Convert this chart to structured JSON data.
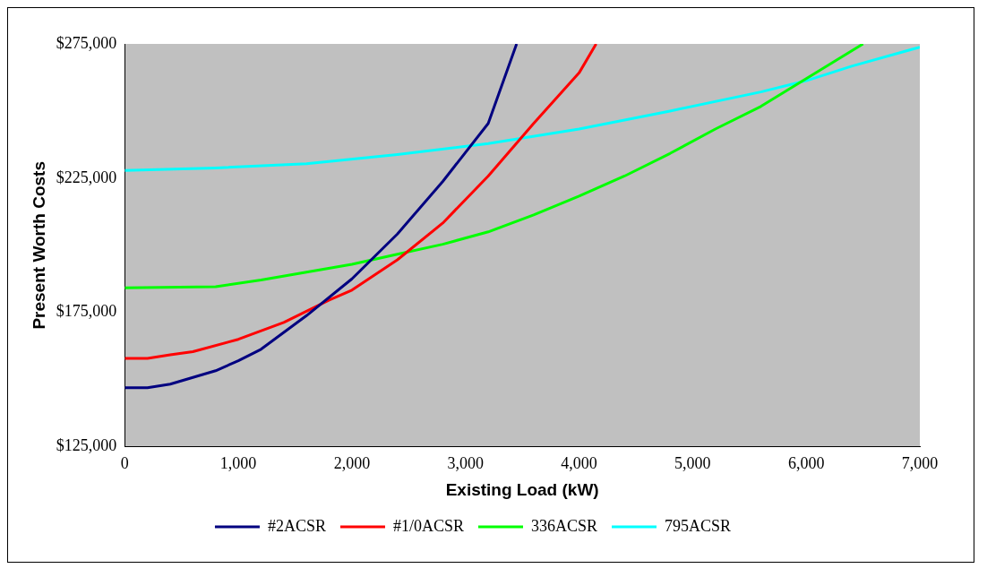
{
  "chart_data": {
    "type": "line",
    "xlabel": "Existing Load (kW)",
    "ylabel": "Present Worth Costs",
    "xlim": [
      0,
      7000
    ],
    "xticks": [
      0,
      {
        "value": 1000,
        "label": "1,000"
      },
      {
        "value": 2000,
        "label": "2,000"
      },
      {
        "value": 3000,
        "label": "3,000"
      },
      {
        "value": 4000,
        "label": "4,000"
      },
      {
        "value": 5000,
        "label": "5,000"
      },
      {
        "value": 6000,
        "label": "6,000"
      },
      {
        "value": 7000,
        "label": "7,000"
      }
    ],
    "ylim": [
      125000,
      275000
    ],
    "yticks": [
      {
        "value": 125000,
        "label": "$125,000"
      },
      {
        "value": 175000,
        "label": "$175,000"
      },
      {
        "value": 225000,
        "label": "$225,000"
      },
      {
        "value": 275000,
        "label": "$275,000"
      }
    ],
    "grid": false,
    "legend": "bottom",
    "marker": "none",
    "line_style": "solid",
    "series": [
      {
        "name": "#2ACSR",
        "color": "#000080",
        "x": [
          0,
          200,
          400,
          800,
          1000,
          1200,
          1600,
          2000,
          2400,
          2800,
          3200,
          3450
        ],
        "values": [
          147000,
          147000,
          148300,
          153300,
          157000,
          161300,
          173800,
          187500,
          204200,
          223800,
          245400,
          275000
        ]
      },
      {
        "name": "#1/0ACSR",
        "color": "#ff0000",
        "x": [
          0,
          200,
          400,
          600,
          1000,
          1400,
          1800,
          2000,
          2400,
          2800,
          3200,
          3600,
          4000,
          4150
        ],
        "values": [
          157900,
          157900,
          159200,
          160400,
          165000,
          171300,
          179600,
          183300,
          194600,
          208300,
          225800,
          245400,
          264200,
          275000
        ]
      },
      {
        "name": "336ACSR",
        "color": "#00ff00",
        "x": [
          0,
          800,
          1200,
          1600,
          2000,
          2400,
          2800,
          3200,
          3600,
          4000,
          4400,
          4800,
          5200,
          5600,
          6000,
          6500
        ],
        "values": [
          184200,
          184600,
          187100,
          190000,
          192900,
          196700,
          200400,
          205000,
          211300,
          218300,
          225800,
          234200,
          243300,
          251700,
          262100,
          275000
        ]
      },
      {
        "name": "795ACSR",
        "color": "#00ffff",
        "x": [
          0,
          800,
          1600,
          2400,
          3200,
          4000,
          4800,
          5600,
          6000,
          6400,
          7000
        ],
        "values": [
          227900,
          228800,
          230400,
          233800,
          237900,
          243300,
          250000,
          257100,
          261300,
          266700,
          273800
        ]
      }
    ]
  }
}
